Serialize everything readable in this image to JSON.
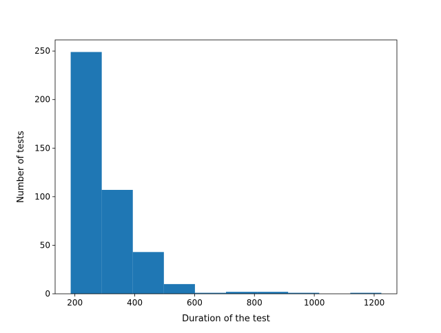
{
  "chart_data": {
    "type": "bar",
    "title": "",
    "xlabel": "Duration of the test",
    "ylabel": "Number of tests",
    "bins": [
      {
        "x0": 186,
        "x1": 289.8,
        "count": 249
      },
      {
        "x0": 289.8,
        "x1": 393.6,
        "count": 107
      },
      {
        "x0": 393.6,
        "x1": 497.4,
        "count": 43
      },
      {
        "x0": 497.4,
        "x1": 601.2,
        "count": 10
      },
      {
        "x0": 601.2,
        "x1": 705.0,
        "count": 1
      },
      {
        "x0": 705.0,
        "x1": 808.8,
        "count": 2
      },
      {
        "x0": 808.8,
        "x1": 912.6,
        "count": 2
      },
      {
        "x0": 912.6,
        "x1": 1016.4,
        "count": 1
      },
      {
        "x0": 1016.4,
        "x1": 1120.2,
        "count": 0
      },
      {
        "x0": 1120.2,
        "x1": 1224.0,
        "count": 1
      }
    ],
    "xlim": [
      134,
      1276
    ],
    "ylim": [
      0,
      261.45
    ],
    "xticks": [
      {
        "value": 200,
        "label": "200"
      },
      {
        "value": 400,
        "label": "400"
      },
      {
        "value": 600,
        "label": "600"
      },
      {
        "value": 800,
        "label": "800"
      },
      {
        "value": 1000,
        "label": "1000"
      },
      {
        "value": 1200,
        "label": "1200"
      }
    ],
    "yticks": [
      {
        "value": 0,
        "label": "0"
      },
      {
        "value": 50,
        "label": "50"
      },
      {
        "value": 100,
        "label": "100"
      },
      {
        "value": 150,
        "label": "150"
      },
      {
        "value": 200,
        "label": "200"
      },
      {
        "value": 250,
        "label": "250"
      }
    ],
    "bar_color": "#1f77b4",
    "grid": false,
    "legend": "none"
  }
}
